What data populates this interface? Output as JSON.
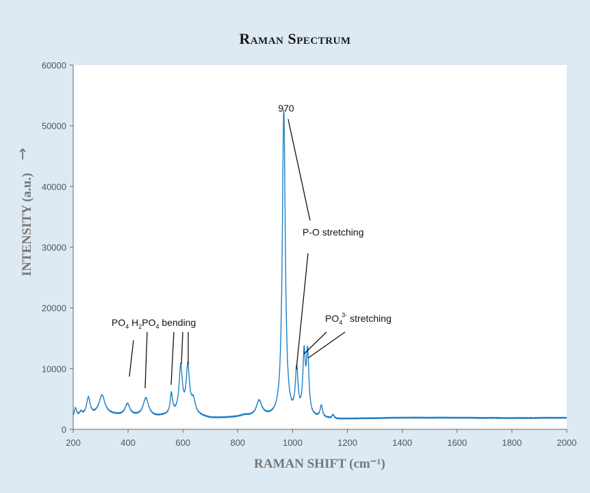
{
  "chart_data": {
    "type": "line",
    "title": "Raman Spectrum",
    "xlabel": "RAMAN SHIFT (cm⁻¹)",
    "ylabel": "INTENSITY (a.u.)",
    "ylabel_arrow": "→",
    "xlim": [
      200,
      2000
    ],
    "ylim": [
      0,
      60000
    ],
    "xticks": [
      200,
      400,
      600,
      800,
      1000,
      1200,
      1400,
      1600,
      1800,
      2000
    ],
    "yticks": [
      0,
      10000,
      20000,
      30000,
      40000,
      50000,
      60000
    ],
    "grid": false,
    "line_color": "#1f7fc4",
    "baseline_segments": [
      [
        200,
        1500
      ],
      [
        300,
        2500
      ],
      [
        400,
        2200
      ],
      [
        500,
        2000
      ],
      [
        600,
        2600
      ],
      [
        700,
        1800
      ],
      [
        800,
        1900
      ],
      [
        900,
        2000
      ],
      [
        1000,
        1500
      ],
      [
        1100,
        1800
      ],
      [
        1160,
        1600
      ],
      [
        1200,
        1700
      ],
      [
        1400,
        1900
      ],
      [
        1600,
        1900
      ],
      [
        1800,
        1850
      ],
      [
        2000,
        1900
      ]
    ],
    "peaks": [
      {
        "x": 208,
        "height": 1700,
        "width": 6
      },
      {
        "x": 228,
        "height": 800,
        "width": 8
      },
      {
        "x": 255,
        "height": 3000,
        "width": 8
      },
      {
        "x": 305,
        "height": 3000,
        "width": 13
      },
      {
        "x": 398,
        "height": 1900,
        "width": 10
      },
      {
        "x": 465,
        "height": 3000,
        "width": 12
      },
      {
        "x": 558,
        "height": 3300,
        "width": 5
      },
      {
        "x": 592,
        "height": 7500,
        "width": 7
      },
      {
        "x": 618,
        "height": 7600,
        "width": 7
      },
      {
        "x": 638,
        "height": 2200,
        "width": 9
      },
      {
        "x": 825,
        "height": 300,
        "width": 20
      },
      {
        "x": 878,
        "height": 2500,
        "width": 12
      },
      {
        "x": 968,
        "height": 50700,
        "width": 6.5
      },
      {
        "x": 1015,
        "height": 7500,
        "width": 6
      },
      {
        "x": 1042,
        "height": 9800,
        "width": 5.5
      },
      {
        "x": 1055,
        "height": 10000,
        "width": 5.5
      },
      {
        "x": 1105,
        "height": 1900,
        "width": 5
      },
      {
        "x": 1148,
        "height": 600,
        "width": 5
      }
    ],
    "annotations": {
      "peak_970": "970",
      "p_o": "P-O stretching",
      "po4_bend_a": "PO",
      "po4_bend_a_sub": "4",
      "h2po4_h": "H",
      "h2po4_sub2": "2",
      "h2po4_po": "PO",
      "h2po4_sub4": "4",
      "bending": "bending",
      "po43_po": "PO",
      "po43_sub": "4",
      "po43_sup": "3-",
      "po43_stretch": "stretching"
    }
  }
}
